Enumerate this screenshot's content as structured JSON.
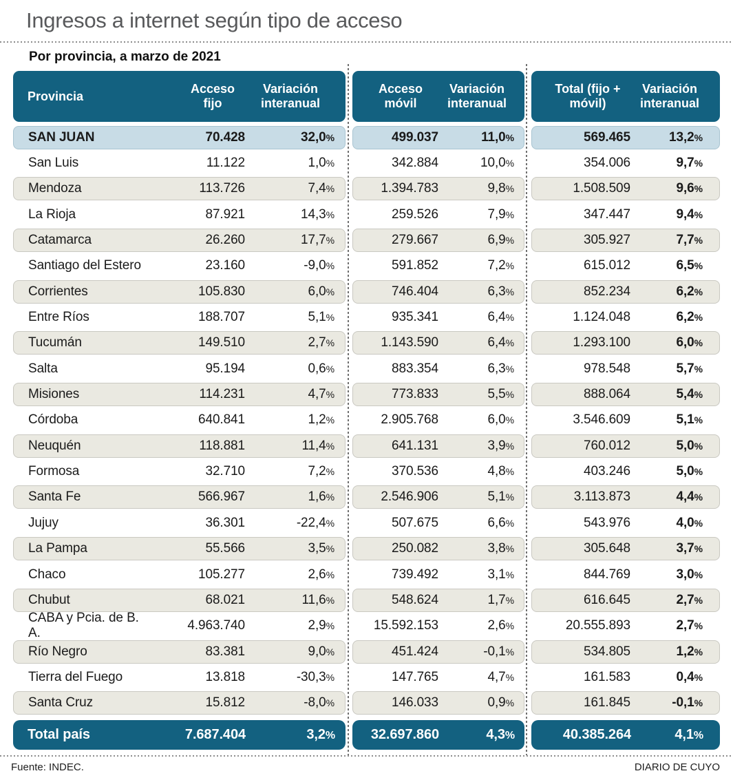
{
  "title": "Ingresos a internet según tipo de acceso",
  "subtitle": "Por provincia, a marzo de 2021",
  "colors": {
    "header_bg": "#136180",
    "highlight_bg": "#c8dce6",
    "stripe_bg": "#eae9e1"
  },
  "footer": {
    "source": "Fuente: INDEC.",
    "credit": "DIARIO DE CUYO"
  },
  "chart_data": {
    "type": "table",
    "title": "Ingresos a internet según tipo de acceso",
    "subtitle": "Por provincia, a marzo de 2021",
    "columns": [
      "Provincia",
      "Acceso fijo",
      "Variación interanual",
      "Acceso móvil",
      "Variación interanual",
      "Total (fijo + móvil)",
      "Variación interanual"
    ],
    "highlighted_row": "SAN JUAN",
    "rows": [
      [
        "SAN JUAN",
        "70.428",
        "32,0%",
        "499.037",
        "11,0%",
        "569.465",
        "13,2%"
      ],
      [
        "San Luis",
        "11.122",
        "1,0%",
        "342.884",
        "10,0%",
        "354.006",
        "9,7%"
      ],
      [
        "Mendoza",
        "113.726",
        "7,4%",
        "1.394.783",
        "9,8%",
        "1.508.509",
        "9,6%"
      ],
      [
        "La Rioja",
        "87.921",
        "14,3%",
        "259.526",
        "7,9%",
        "347.447",
        "9,4%"
      ],
      [
        "Catamarca",
        "26.260",
        "17,7%",
        "279.667",
        "6,9%",
        "305.927",
        "7,7%"
      ],
      [
        "Santiago del Estero",
        "23.160",
        "-9,0%",
        "591.852",
        "7,2%",
        "615.012",
        "6,5%"
      ],
      [
        "Corrientes",
        "105.830",
        "6,0%",
        "746.404",
        "6,3%",
        "852.234",
        "6,2%"
      ],
      [
        "Entre Ríos",
        "188.707",
        "5,1%",
        "935.341",
        "6,4%",
        "1.124.048",
        "6,2%"
      ],
      [
        "Tucumán",
        "149.510",
        "2,7%",
        "1.143.590",
        "6,4%",
        "1.293.100",
        "6,0%"
      ],
      [
        "Salta",
        "95.194",
        "0,6%",
        "883.354",
        "6,3%",
        "978.548",
        "5,7%"
      ],
      [
        "Misiones",
        "114.231",
        "4,7%",
        "773.833",
        "5,5%",
        "888.064",
        "5,4%"
      ],
      [
        "Córdoba",
        "640.841",
        "1,2%",
        "2.905.768",
        "6,0%",
        "3.546.609",
        "5,1%"
      ],
      [
        "Neuquén",
        "118.881",
        "11,4%",
        "641.131",
        "3,9%",
        "760.012",
        "5,0%"
      ],
      [
        "Formosa",
        "32.710",
        "7,2%",
        "370.536",
        "4,8%",
        "403.246",
        "5,0%"
      ],
      [
        "Santa Fe",
        "566.967",
        "1,6%",
        "2.546.906",
        "5,1%",
        "3.113.873",
        "4,4%"
      ],
      [
        "Jujuy",
        "36.301",
        "-22,4%",
        "507.675",
        "6,6%",
        "543.976",
        "4,0%"
      ],
      [
        "La Pampa",
        "55.566",
        "3,5%",
        "250.082",
        "3,8%",
        "305.648",
        "3,7%"
      ],
      [
        "Chaco",
        "105.277",
        "2,6%",
        "739.492",
        "3,1%",
        "844.769",
        "3,0%"
      ],
      [
        "Chubut",
        "68.021",
        "11,6%",
        "548.624",
        "1,7%",
        "616.645",
        "2,7%"
      ],
      [
        "CABA y Pcia. de B. A.",
        "4.963.740",
        "2,9%",
        "15.592.153",
        "2,6%",
        "20.555.893",
        "2,7%"
      ],
      [
        "Río Negro",
        "83.381",
        "9,0%",
        "451.424",
        "-0,1%",
        "534.805",
        "1,2%"
      ],
      [
        "Tierra del Fuego",
        "13.818",
        "-30,3%",
        "147.765",
        "4,7%",
        "161.583",
        "0,4%"
      ],
      [
        "Santa Cruz",
        "15.812",
        "-8,0%",
        "146.033",
        "0,9%",
        "161.845",
        "-0,1%"
      ]
    ],
    "total": [
      "Total país",
      "7.687.404",
      "3,2%",
      "32.697.860",
      "4,3%",
      "40.385.264",
      "4,1%"
    ]
  }
}
